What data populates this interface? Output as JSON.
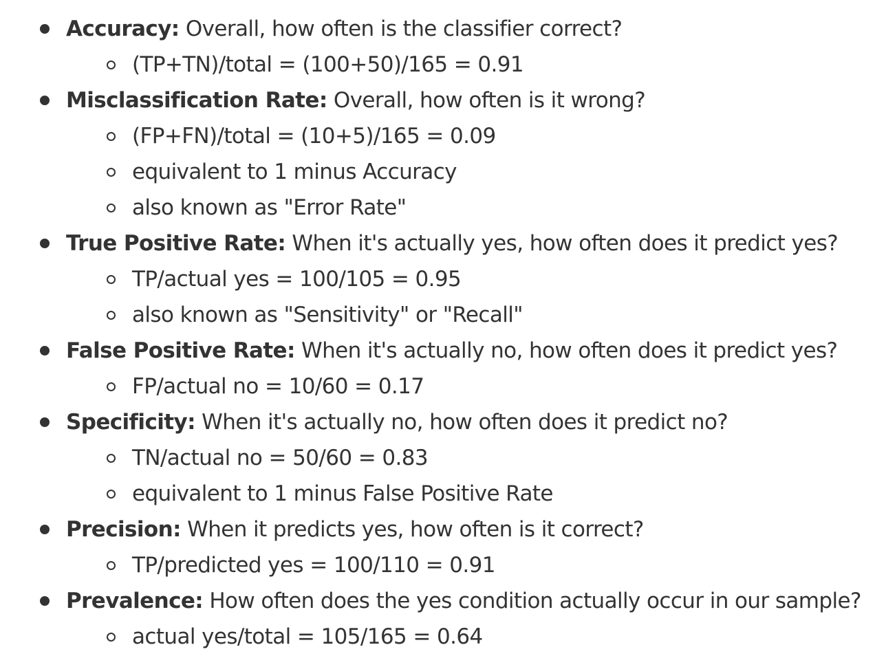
{
  "metrics": [
    {
      "term": "Accuracy:",
      "description": "Overall, how often is the classifier correct?",
      "details": [
        "(TP+TN)/total = (100+50)/165 = 0.91"
      ]
    },
    {
      "term": "Misclassification Rate:",
      "description": "Overall, how often is it wrong?",
      "details": [
        "(FP+FN)/total = (10+5)/165 = 0.09",
        "equivalent to 1 minus Accuracy",
        "also known as \"Error Rate\""
      ]
    },
    {
      "term": "True Positive Rate:",
      "description": "When it's actually yes, how often does it predict yes?",
      "details": [
        "TP/actual yes = 100/105 = 0.95",
        "also known as \"Sensitivity\" or \"Recall\""
      ]
    },
    {
      "term": "False Positive Rate:",
      "description": "When it's actually no, how often does it predict yes?",
      "details": [
        "FP/actual no = 10/60 = 0.17"
      ]
    },
    {
      "term": "Specificity:",
      "description": "When it's actually no, how often does it predict no?",
      "details": [
        "TN/actual no = 50/60 = 0.83",
        "equivalent to 1 minus False Positive Rate"
      ]
    },
    {
      "term": "Precision:",
      "description": "When it predicts yes, how often is it correct?",
      "details": [
        "TP/predicted yes = 100/110 = 0.91"
      ]
    },
    {
      "term": "Prevalence:",
      "description": "How often does the yes condition actually occur in our sample?",
      "details": [
        "actual yes/total = 105/165 = 0.64"
      ]
    }
  ],
  "colors": {
    "text": "#333333",
    "background": "#ffffff"
  }
}
